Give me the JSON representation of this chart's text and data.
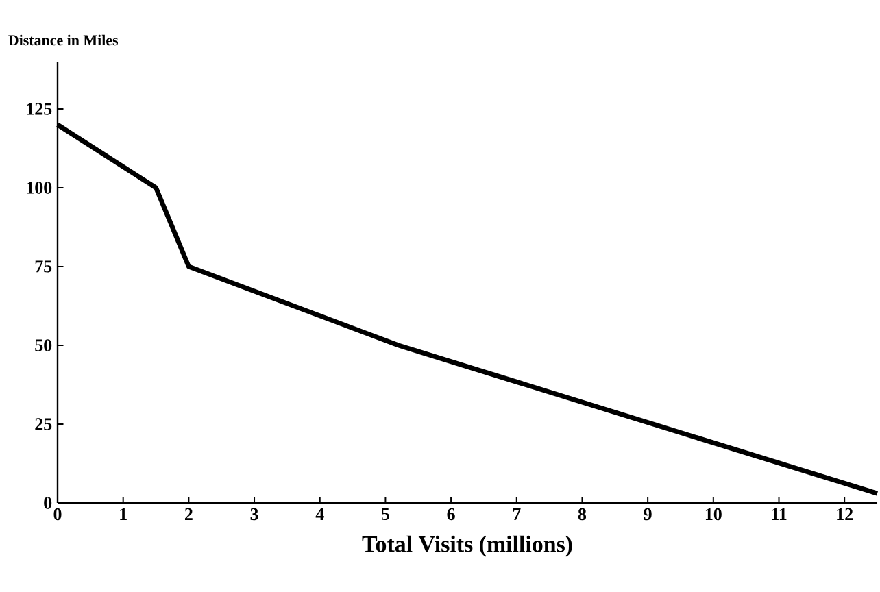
{
  "chart_data": {
    "type": "line",
    "xlabel": "Total Visits (millions)",
    "ylabel": "Distance in Miles",
    "x": [
      0,
      1.5,
      2,
      5.2,
      12.5
    ],
    "series": [
      {
        "color": "#000000",
        "values": [
          120,
          100,
          75,
          50,
          3
        ]
      }
    ],
    "xlim": [
      0,
      12.5
    ],
    "ylim": [
      0,
      140
    ],
    "xticks": [
      0,
      1,
      2,
      3,
      4,
      5,
      6,
      7,
      8,
      9,
      10,
      11,
      12
    ],
    "yticks": [
      0,
      25,
      50,
      75,
      100,
      125
    ],
    "grid": false,
    "marker": "none",
    "line_style": "solid"
  }
}
